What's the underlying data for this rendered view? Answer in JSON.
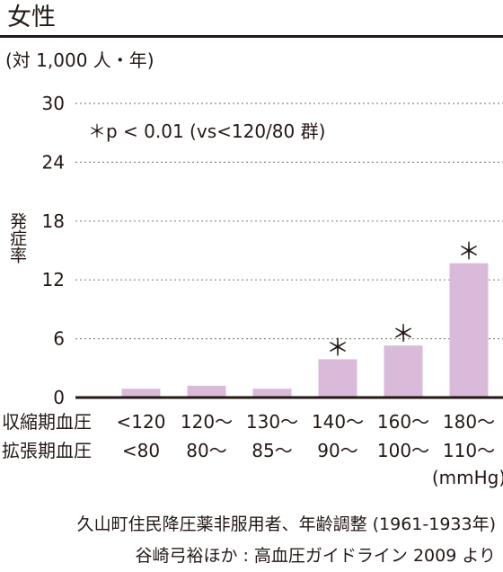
{
  "title": "女性",
  "unit": "(対 1,000 人・年)",
  "ylabel": "発症率",
  "annotation": "＊p < 0.01 (vs<120/80 群)",
  "row_labels": [
    "収縮期血圧",
    "拡張期血圧"
  ],
  "unit_mmhg": "(mmHg)",
  "source_line1": "久山町住民降圧薬非服用者、年齢調整 (1961-1933年)",
  "source_line2": "谷崎弓裕ほか : 高血圧ガイドライン 2009 より",
  "colors": {
    "bar": "#d9bad9",
    "axis": "#231815",
    "grid": "#888888"
  },
  "chart_data": {
    "type": "bar",
    "ylim": [
      0,
      30
    ],
    "yticks": [
      0,
      6,
      12,
      18,
      24,
      30
    ],
    "grid": true,
    "categories_systolic": [
      "<120",
      "120～",
      "130～",
      "140～",
      "160～",
      "180～"
    ],
    "categories_diastolic": [
      "<80",
      "80～",
      "85～",
      "90～",
      "100～",
      "110～"
    ],
    "values": [
      0.9,
      1.2,
      0.9,
      3.9,
      5.3,
      13.7
    ],
    "significant": [
      false,
      false,
      false,
      true,
      true,
      true
    ],
    "marker": "＊"
  }
}
